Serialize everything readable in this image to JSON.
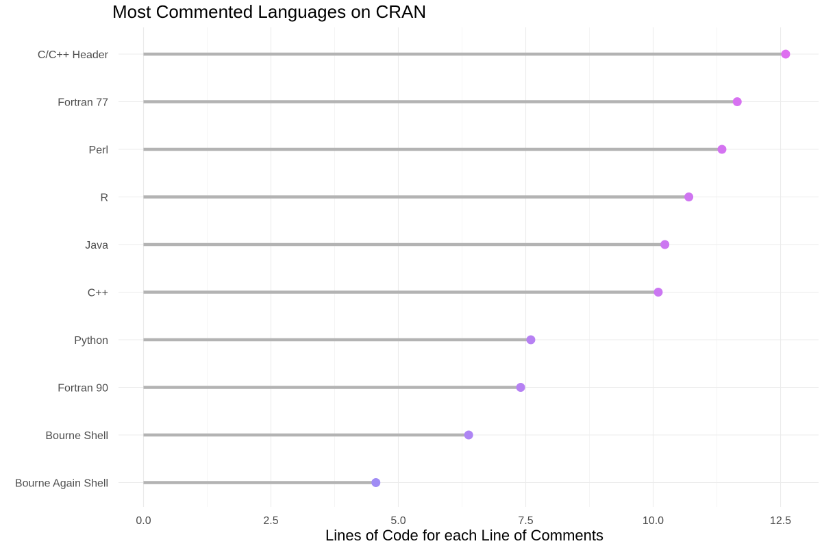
{
  "chart_data": {
    "type": "lollipop",
    "title": "Most Commented Languages on CRAN",
    "xlabel": "Lines of Code for each Line of Comments",
    "ylabel": "",
    "xlim": [
      -0.6,
      13.0
    ],
    "xticks": [
      0.0,
      2.5,
      5.0,
      7.5,
      10.0,
      12.5
    ],
    "xtick_labels": [
      "0.0",
      "2.5",
      "5.0",
      "7.5",
      "10.0",
      "12.5"
    ],
    "grid": true,
    "legend": "none",
    "categories": [
      "C/C++ Header",
      "Fortran 77",
      "Perl",
      "R",
      "Java",
      "C++",
      "Python",
      "Fortran 90",
      "Bourne Shell",
      "Bourne Again Shell"
    ],
    "values": [
      12.6,
      11.65,
      11.35,
      10.7,
      10.23,
      10.1,
      7.6,
      7.4,
      6.38,
      4.56
    ],
    "segment_color": "#b3b3b3",
    "point_color_low": "#a08cf5",
    "point_color_high": "#de6ef0"
  }
}
